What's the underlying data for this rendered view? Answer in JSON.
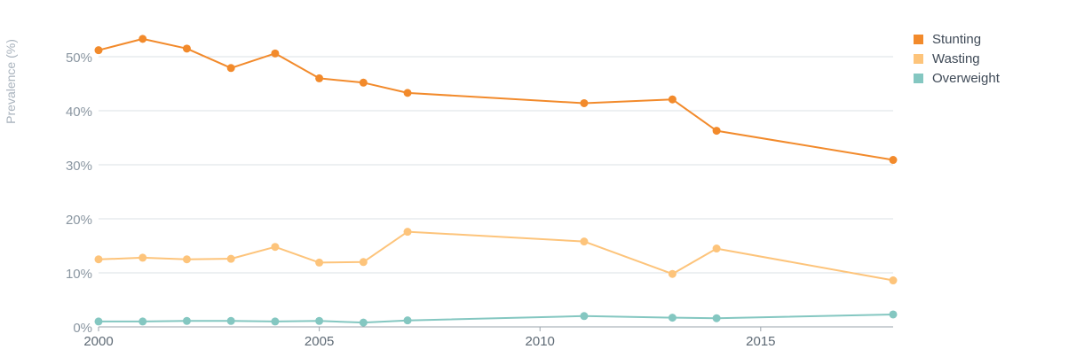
{
  "chart_data": {
    "type": "line",
    "title": "",
    "xlabel": "",
    "ylabel": "Prevalence (%)",
    "xlim": [
      2000,
      2018
    ],
    "ylim": [
      0,
      55
    ],
    "x_ticks": [
      2000,
      2005,
      2010,
      2015
    ],
    "y_ticks": [
      0,
      10,
      20,
      30,
      40,
      50
    ],
    "y_tick_labels": [
      "0%",
      "10%",
      "20%",
      "30%",
      "40%",
      "50%"
    ],
    "grid": true,
    "legend_position": "top-right",
    "series": [
      {
        "name": "Stunting",
        "color": "#f28a2b",
        "points": [
          [
            2000,
            51.2
          ],
          [
            2001,
            53.3
          ],
          [
            2002,
            51.5
          ],
          [
            2003,
            47.9
          ],
          [
            2004,
            50.6
          ],
          [
            2005,
            46.0
          ],
          [
            2006,
            45.2
          ],
          [
            2007,
            43.3
          ],
          [
            2011,
            41.4
          ],
          [
            2013,
            42.1
          ],
          [
            2014,
            36.3
          ],
          [
            2018,
            30.9
          ]
        ]
      },
      {
        "name": "Wasting",
        "color": "#fdc47b",
        "points": [
          [
            2000,
            12.5
          ],
          [
            2001,
            12.8
          ],
          [
            2002,
            12.5
          ],
          [
            2003,
            12.6
          ],
          [
            2004,
            14.8
          ],
          [
            2005,
            11.9
          ],
          [
            2006,
            12.0
          ],
          [
            2007,
            17.6
          ],
          [
            2011,
            15.8
          ],
          [
            2013,
            9.8
          ],
          [
            2014,
            14.5
          ],
          [
            2018,
            8.6
          ]
        ]
      },
      {
        "name": "Overweight",
        "color": "#84c7c1",
        "points": [
          [
            2000,
            1.0
          ],
          [
            2001,
            1.0
          ],
          [
            2002,
            1.1
          ],
          [
            2003,
            1.1
          ],
          [
            2004,
            1.0
          ],
          [
            2005,
            1.1
          ],
          [
            2006,
            0.8
          ],
          [
            2007,
            1.2
          ],
          [
            2011,
            2.0
          ],
          [
            2013,
            1.7
          ],
          [
            2014,
            1.6
          ],
          [
            2018,
            2.3
          ]
        ]
      }
    ]
  }
}
